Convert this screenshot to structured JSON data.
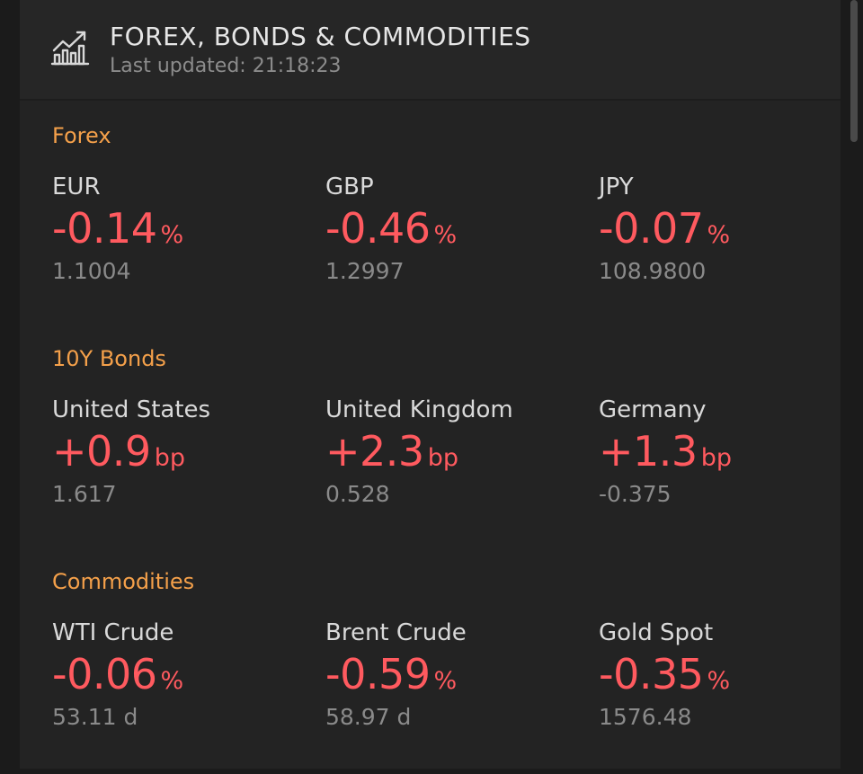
{
  "header": {
    "icon": "chart-bars-trend-icon",
    "title": "FOREX, BONDS & COMMODITIES",
    "last_updated_label": "Last updated:",
    "last_updated_time": "21:18:23"
  },
  "colors": {
    "accent": "#f4a04a",
    "negative_change": "#ff5a5f",
    "background": "#232323"
  },
  "sections": [
    {
      "title": "Forex",
      "items": [
        {
          "name": "EUR",
          "change": "-0.14",
          "unit": "%",
          "value": "1.1004"
        },
        {
          "name": "GBP",
          "change": "-0.46",
          "unit": "%",
          "value": "1.2997"
        },
        {
          "name": "JPY",
          "change": "-0.07",
          "unit": "%",
          "value": "108.9800"
        }
      ]
    },
    {
      "title": "10Y Bonds",
      "items": [
        {
          "name": "United States",
          "change": "+0.9",
          "unit": "bp",
          "value": "1.617"
        },
        {
          "name": "United Kingdom",
          "change": "+2.3",
          "unit": "bp",
          "value": "0.528"
        },
        {
          "name": "Germany",
          "change": "+1.3",
          "unit": "bp",
          "value": "-0.375"
        }
      ]
    },
    {
      "title": "Commodities",
      "items": [
        {
          "name": "WTI Crude",
          "change": "-0.06",
          "unit": "%",
          "value": "53.11 d"
        },
        {
          "name": "Brent Crude",
          "change": "-0.59",
          "unit": "%",
          "value": "58.97 d"
        },
        {
          "name": "Gold Spot",
          "change": "-0.35",
          "unit": "%",
          "value": "1576.48"
        }
      ]
    }
  ]
}
